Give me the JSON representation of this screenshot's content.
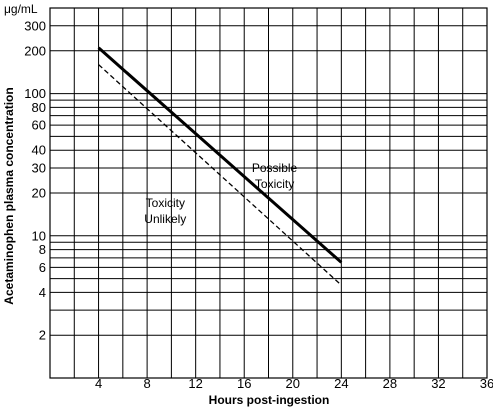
{
  "chart_data": {
    "type": "line",
    "xlabel": "Hours post-ingestion",
    "ylabel": "Acetaminophen plasma concentration",
    "y_unit": "μg/mL",
    "x_range": [
      0,
      36
    ],
    "y_range": [
      1,
      400
    ],
    "y_scale": "log",
    "grid": true,
    "x_ticks": [
      4,
      8,
      12,
      16,
      20,
      24,
      28,
      32,
      36
    ],
    "y_ticks": [
      2,
      4,
      6,
      8,
      10,
      20,
      30,
      40,
      60,
      80,
      100,
      200,
      300
    ],
    "series": [
      {
        "line_style": "solid",
        "x": [
          4,
          24
        ],
        "y": [
          210,
          6.5
        ]
      },
      {
        "line_style": "dashed",
        "x": [
          4,
          24
        ],
        "y": [
          160,
          4.5
        ]
      }
    ],
    "annotations": [
      {
        "text": [
          "Possible",
          "Toxicity"
        ],
        "x": 18.5,
        "y": 28
      },
      {
        "text": [
          "Toxicity",
          "Unlikely"
        ],
        "x": 9.5,
        "y": 16
      }
    ]
  }
}
